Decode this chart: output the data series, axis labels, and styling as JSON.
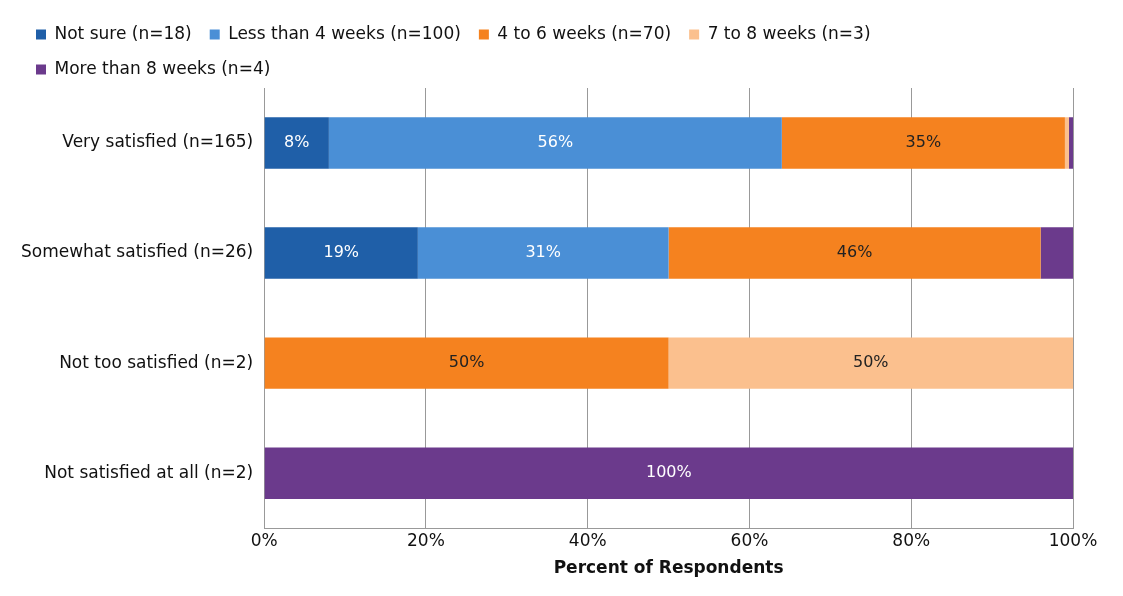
{
  "chart_data": {
    "type": "bar",
    "orientation": "horizontal",
    "stacked": true,
    "xlabel": "Percent of Respondents",
    "categories": [
      "Very satisfied (n=165)",
      "Somewhat satisfied (n=26)",
      "Not too satisfied (n=2)",
      "Not satisfied at all (n=2)"
    ],
    "series": [
      {
        "name": "Not sure (n=18)",
        "color": "#1f5fa8",
        "values": [
          8,
          19,
          0,
          0
        ],
        "value_labels": [
          "8%",
          "19%",
          null,
          null
        ]
      },
      {
        "name": "Less than 4 weeks (n=100)",
        "color": "#4a8fd6",
        "values": [
          56,
          31,
          0,
          0
        ],
        "value_labels": [
          "56%",
          "31%",
          null,
          null
        ]
      },
      {
        "name": "4 to 6 weeks (n=70)",
        "color": "#f5821f",
        "values": [
          35,
          46,
          50,
          0
        ],
        "value_labels": [
          "35%",
          "46%",
          "50%",
          null
        ]
      },
      {
        "name": "7 to 8 weeks (n=3)",
        "color": "#fbc08e",
        "values": [
          0.5,
          0,
          50,
          0
        ],
        "value_labels": [
          null,
          null,
          "50%",
          null
        ]
      },
      {
        "name": "More than 8 weeks (n=4)",
        "color": "#6b3a8c",
        "values": [
          0.5,
          4,
          0,
          100
        ],
        "value_labels": [
          null,
          null,
          null,
          "100%"
        ]
      }
    ],
    "xlim": [
      0,
      100
    ],
    "xticks": [
      {
        "value": 0,
        "label": "0%"
      },
      {
        "value": 20,
        "label": "20%"
      },
      {
        "value": 40,
        "label": "40%"
      },
      {
        "value": 60,
        "label": "60%"
      },
      {
        "value": 80,
        "label": "80%"
      },
      {
        "value": 100,
        "label": "100%"
      }
    ],
    "grid": "x",
    "legend": "top"
  }
}
